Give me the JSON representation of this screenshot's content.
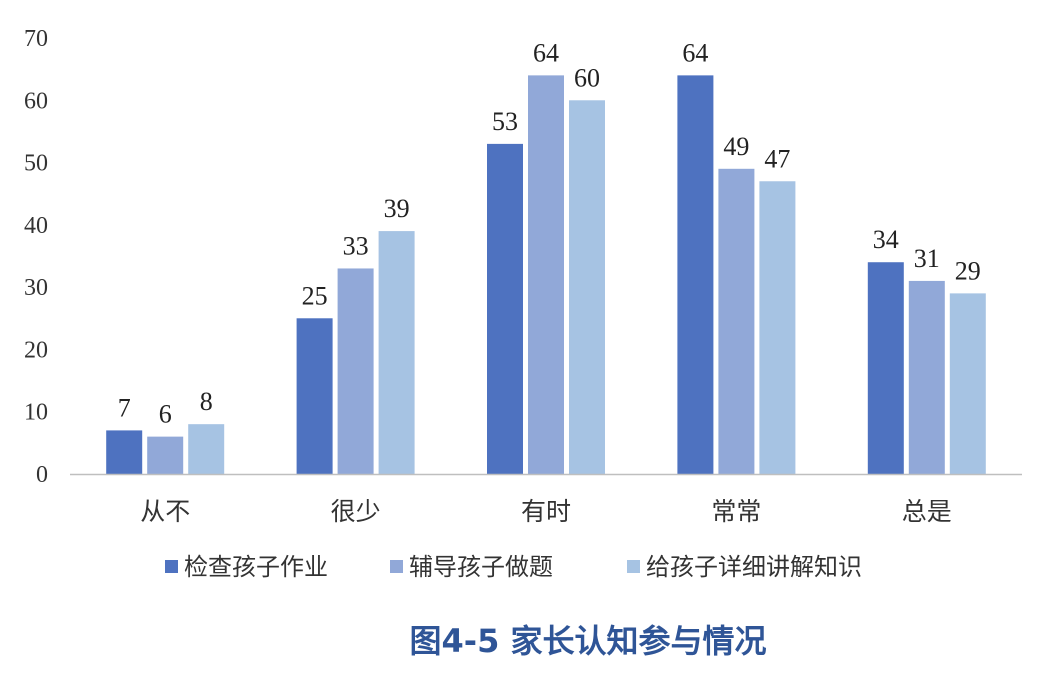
{
  "chart_data": {
    "type": "bar",
    "title": "图4-5 家长认知参与情况",
    "xlabel": "",
    "ylabel": "",
    "ylim": [
      0,
      70
    ],
    "yticks": [
      0,
      10,
      20,
      30,
      40,
      50,
      60,
      70
    ],
    "grid": false,
    "legend_position": "bottom",
    "categories": [
      "从不",
      "很少",
      "有时",
      "常常",
      "总是"
    ],
    "series": [
      {
        "name": "检查孩子作业",
        "color": "#4e72c0",
        "values": [
          7,
          25,
          53,
          64,
          34
        ]
      },
      {
        "name": "辅导孩子做题",
        "color": "#91a8d8",
        "values": [
          6,
          33,
          64,
          49,
          31
        ]
      },
      {
        "name": "给孩子详细讲解知识",
        "color": "#a6c3e3",
        "values": [
          8,
          39,
          60,
          47,
          29
        ]
      }
    ],
    "data_labels": true
  }
}
